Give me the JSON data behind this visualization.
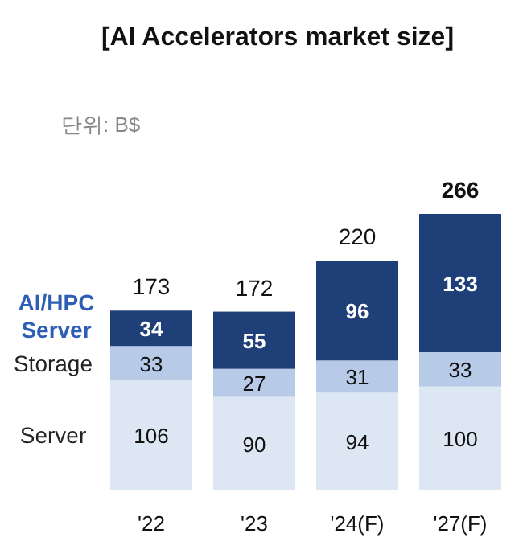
{
  "chart_data": {
    "type": "bar",
    "title": "[AI Accelerators market size]",
    "annotations": [
      "단위: B$"
    ],
    "categories": [
      "'22",
      "'23",
      "'24(F)",
      "'27(F)"
    ],
    "stacked": true,
    "data_labels": true,
    "legend": "left",
    "series": [
      {
        "name": "Server",
        "color": "#dde7f3",
        "values": [
          106,
          90,
          94,
          100
        ]
      },
      {
        "name": "Storage",
        "color": "#b7cbe9",
        "values": [
          33,
          27,
          31,
          33
        ]
      },
      {
        "name": "AI/HPC Server",
        "color": "#1f3f78",
        "values": [
          34,
          55,
          96,
          133
        ]
      }
    ],
    "totals": [
      "173",
      "172",
      "220",
      "266"
    ]
  }
}
